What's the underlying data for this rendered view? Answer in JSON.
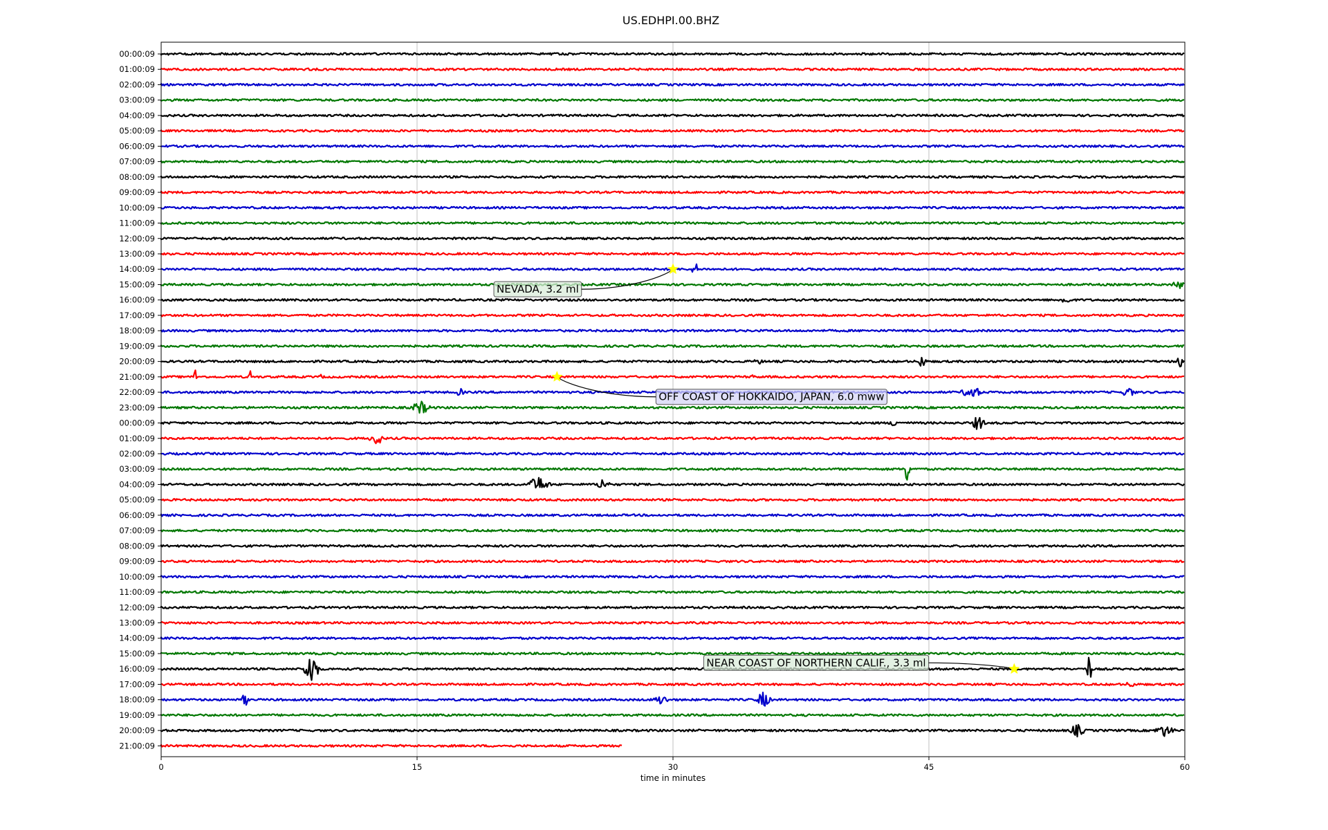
{
  "chart_data": {
    "type": "line",
    "title": "US.EDHPI.00.BHZ",
    "xlabel": "time in minutes",
    "ylabel": "",
    "xlim": [
      0,
      60
    ],
    "x_ticks": [
      "0",
      "15",
      "30",
      "45",
      "60"
    ],
    "x_tick_values": [
      0,
      15,
      30,
      45,
      60
    ],
    "grid": "vertical",
    "trace_colors": [
      "#000000",
      "#ff0000",
      "#0000cc",
      "#007700"
    ],
    "row_labels": [
      "00:00:09",
      "01:00:09",
      "02:00:09",
      "03:00:09",
      "04:00:09",
      "05:00:09",
      "06:00:09",
      "07:00:09",
      "08:00:09",
      "09:00:09",
      "10:00:09",
      "11:00:09",
      "12:00:09",
      "13:00:09",
      "14:00:09",
      "15:00:09",
      "16:00:09",
      "17:00:09",
      "18:00:09",
      "19:00:09",
      "20:00:09",
      "21:00:09",
      "22:00:09",
      "23:00:09",
      "00:00:09",
      "01:00:09",
      "02:00:09",
      "03:00:09",
      "04:00:09",
      "05:00:09",
      "06:00:09",
      "07:00:09",
      "08:00:09",
      "09:00:09",
      "10:00:09",
      "11:00:09",
      "12:00:09",
      "13:00:09",
      "14:00:09",
      "15:00:09",
      "16:00:09",
      "17:00:09",
      "18:00:09",
      "19:00:09",
      "20:00:09",
      "21:00:09"
    ],
    "last_row_end_minute": 27,
    "events": [
      {
        "label": "NEVADA, 3.2 ml",
        "row": 14,
        "minute": 30,
        "label_row": 15.3,
        "label_minute": 19.5,
        "box_color": "#d9ecd9"
      },
      {
        "label": "OFF COAST OF HOKKAIDO, JAPAN, 6.0 mww",
        "row": 21,
        "minute": 23.2,
        "label_row": 22.3,
        "label_minute": 29,
        "box_color": "#d6d6f5"
      },
      {
        "label": "NEAR COAST OF NORTHERN CALIF., 3.3 ml",
        "row": 40,
        "minute": 50,
        "label_row": 39.6,
        "label_minute": 31.8,
        "box_color": "#d9ecd9"
      }
    ],
    "bursts": [
      {
        "row": 14,
        "minute": 31.3,
        "amp": 10,
        "width": 0.3
      },
      {
        "row": 15,
        "minute": 59.6,
        "amp": 7,
        "width": 0.5
      },
      {
        "row": 16,
        "minute": 53,
        "amp": 11,
        "width": 0.3
      },
      {
        "row": 20,
        "minute": 35,
        "amp": 5,
        "width": 0.4
      },
      {
        "row": 20,
        "minute": 44.6,
        "amp": 11,
        "width": 0.3
      },
      {
        "row": 20,
        "minute": 59.7,
        "amp": 12,
        "width": 0.2
      },
      {
        "row": 21,
        "minute": 2,
        "amp": 14,
        "width": 0.1
      },
      {
        "row": 21,
        "minute": 5.2,
        "amp": 14,
        "width": 0.1
      },
      {
        "row": 21,
        "minute": 9.4,
        "amp": 14,
        "width": 0.1
      },
      {
        "row": 21,
        "minute": 34.6,
        "amp": 10,
        "width": 0.1
      },
      {
        "row": 22,
        "minute": 17.5,
        "amp": 8,
        "width": 0.3
      },
      {
        "row": 22,
        "minute": 47.5,
        "amp": 10,
        "width": 0.8
      },
      {
        "row": 22,
        "minute": 56.7,
        "amp": 9,
        "width": 0.5
      },
      {
        "row": 23,
        "minute": 15.2,
        "amp": 10,
        "width": 0.8
      },
      {
        "row": 24,
        "minute": 43,
        "amp": 7,
        "width": 0.4
      },
      {
        "row": 24,
        "minute": 47.9,
        "amp": 12,
        "width": 0.5
      },
      {
        "row": 25,
        "minute": 12.6,
        "amp": 12,
        "width": 0.5
      },
      {
        "row": 27,
        "minute": 43.7,
        "amp": 20,
        "width": 0.3
      },
      {
        "row": 28,
        "minute": 22.1,
        "amp": 12,
        "width": 0.9
      },
      {
        "row": 28,
        "minute": 25.9,
        "amp": 10,
        "width": 0.5
      },
      {
        "row": 40,
        "minute": 8.8,
        "amp": 24,
        "width": 0.6
      },
      {
        "row": 40,
        "minute": 54.4,
        "amp": 26,
        "width": 0.2
      },
      {
        "row": 41,
        "minute": 56.8,
        "amp": 7,
        "width": 0.3
      },
      {
        "row": 42,
        "minute": 4.9,
        "amp": 14,
        "width": 0.2
      },
      {
        "row": 42,
        "minute": 29.3,
        "amp": 8,
        "width": 0.6
      },
      {
        "row": 42,
        "minute": 35.3,
        "amp": 12,
        "width": 0.6
      },
      {
        "row": 44,
        "minute": 53.7,
        "amp": 10,
        "width": 0.6
      },
      {
        "row": 44,
        "minute": 58.8,
        "amp": 9,
        "width": 0.8
      }
    ]
  }
}
